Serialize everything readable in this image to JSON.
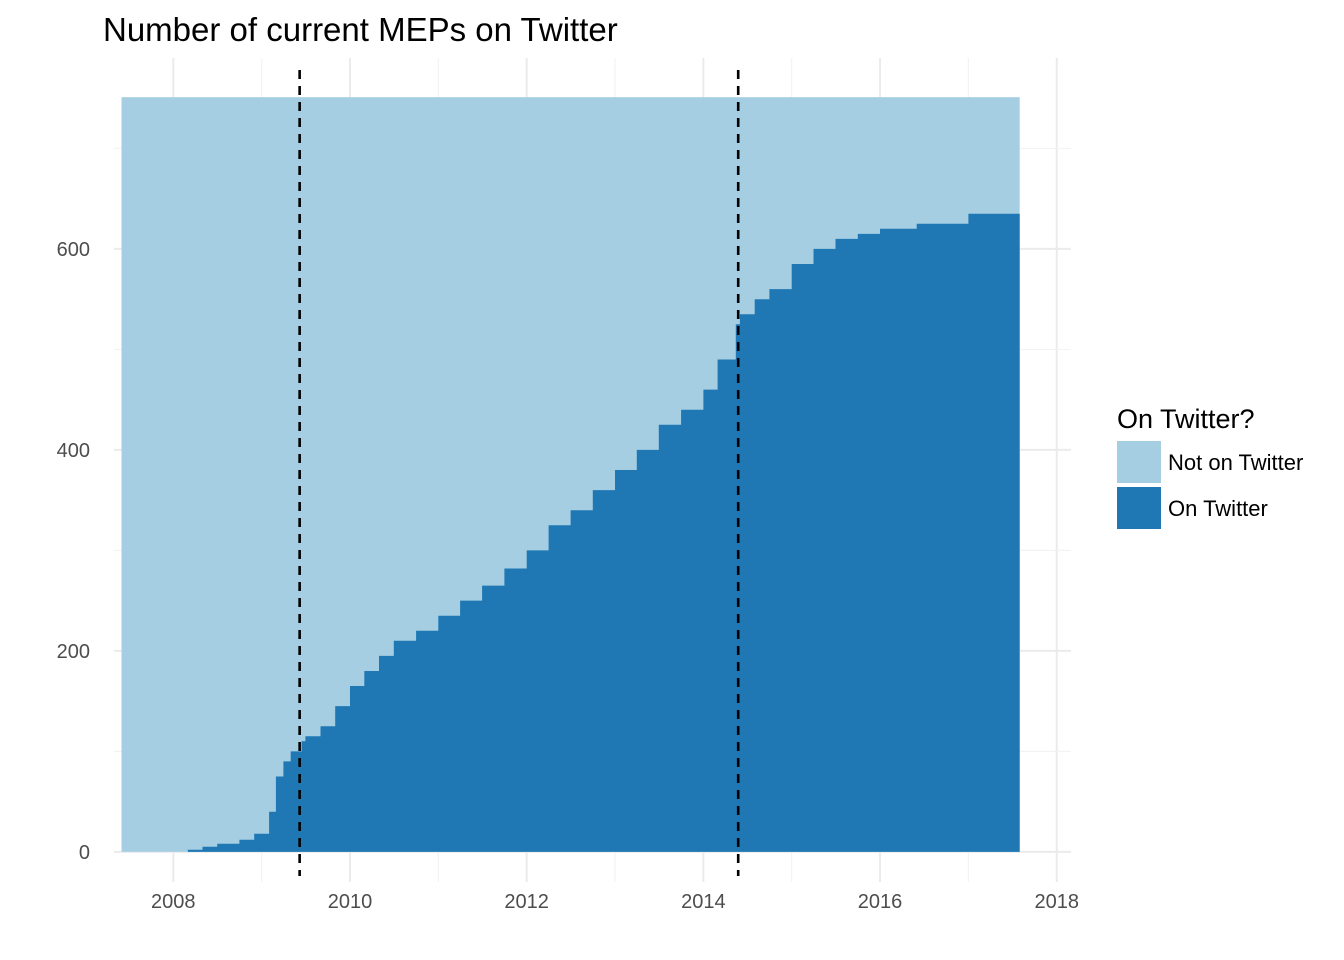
{
  "chart_data": {
    "type": "area",
    "stacked": true,
    "title": "Number of current MEPs on Twitter",
    "xlabel": "",
    "ylabel": "",
    "x_range": [
      "2007-05-01",
      "2018-03-01"
    ],
    "y_range": [
      -30,
      790
    ],
    "x_ticks": [
      {
        "x": "2008-01-01",
        "label": "2008"
      },
      {
        "x": "2010-01-01",
        "label": "2010"
      },
      {
        "x": "2012-01-01",
        "label": "2012"
      },
      {
        "x": "2014-01-01",
        "label": "2014"
      },
      {
        "x": "2016-01-01",
        "label": "2016"
      },
      {
        "x": "2018-01-01",
        "label": "2018"
      }
    ],
    "y_ticks": [
      {
        "y": 0,
        "label": "0"
      },
      {
        "y": 200,
        "label": "200"
      },
      {
        "y": 400,
        "label": "400"
      },
      {
        "y": 600,
        "label": "600"
      }
    ],
    "grid": true,
    "total_members": 751,
    "x_start": "2007-06-01",
    "x_end": "2017-08-01",
    "vlines": [
      "2009-06-07",
      "2014-05-25"
    ],
    "series": [
      {
        "name": "Not on Twitter",
        "color": "#a6cee3",
        "role": "remainder"
      },
      {
        "name": "On Twitter",
        "color": "#1f78b4",
        "role": "cumulative",
        "x": [
          "2007-06-01",
          "2007-09-01",
          "2008-03-01",
          "2008-05-01",
          "2008-07-01",
          "2008-10-01",
          "2008-12-01",
          "2009-02-01",
          "2009-03-01",
          "2009-04-01",
          "2009-05-01",
          "2009-06-15",
          "2009-07-01",
          "2009-09-01",
          "2009-11-01",
          "2010-01-01",
          "2010-03-01",
          "2010-05-01",
          "2010-07-01",
          "2010-10-01",
          "2011-01-01",
          "2011-04-01",
          "2011-07-01",
          "2011-10-01",
          "2012-01-01",
          "2012-04-01",
          "2012-07-01",
          "2012-10-01",
          "2013-01-01",
          "2013-04-01",
          "2013-07-01",
          "2013-10-01",
          "2014-01-01",
          "2014-03-01",
          "2014-05-15",
          "2014-06-01",
          "2014-08-01",
          "2014-10-01",
          "2015-01-01",
          "2015-04-01",
          "2015-07-01",
          "2015-10-01",
          "2016-01-01",
          "2016-06-01",
          "2017-01-01",
          "2017-08-01"
        ],
        "values": [
          0,
          0,
          2,
          5,
          8,
          12,
          18,
          40,
          75,
          90,
          100,
          110,
          115,
          125,
          145,
          165,
          180,
          195,
          210,
          220,
          235,
          250,
          265,
          282,
          300,
          325,
          340,
          360,
          380,
          400,
          425,
          440,
          460,
          490,
          525,
          535,
          550,
          560,
          585,
          600,
          610,
          615,
          620,
          625,
          635,
          645
        ]
      }
    ]
  },
  "legend": {
    "title": "On Twitter?",
    "items": [
      "Not on Twitter",
      "On Twitter"
    ]
  }
}
